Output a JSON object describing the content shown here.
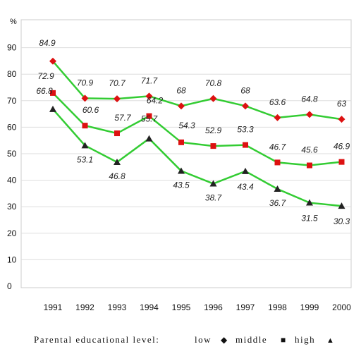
{
  "chart_data": {
    "type": "line",
    "ylabel": "%",
    "ylim": [
      0,
      100
    ],
    "yticks": [
      0,
      10,
      20,
      30,
      40,
      50,
      60,
      70,
      80,
      90
    ],
    "categories": [
      "1991",
      "1992",
      "1993",
      "1994",
      "1995",
      "1996",
      "1997",
      "1998",
      "1999",
      "2000"
    ],
    "legend": {
      "title": "Parental educational level:",
      "entries": [
        "low",
        "middle",
        "high"
      ],
      "placement": "bottom"
    },
    "series": [
      {
        "name": "low",
        "values": [
          84.9,
          70.9,
          70.7,
          71.7,
          68,
          70.8,
          68,
          63.6,
          64.8,
          63
        ],
        "marker": "diamond"
      },
      {
        "name": "middle",
        "values": [
          72.9,
          60.6,
          57.7,
          64.2,
          54.3,
          52.9,
          53.3,
          46.7,
          45.6,
          46.9
        ],
        "marker": "square"
      },
      {
        "name": "high",
        "values": [
          66.8,
          53.1,
          46.8,
          55.7,
          43.5,
          38.7,
          43.4,
          36.7,
          31.5,
          30.3
        ],
        "marker": "triangle"
      }
    ],
    "line_color": "#33cc33",
    "marker_color": "#dd1111",
    "grid": true
  }
}
